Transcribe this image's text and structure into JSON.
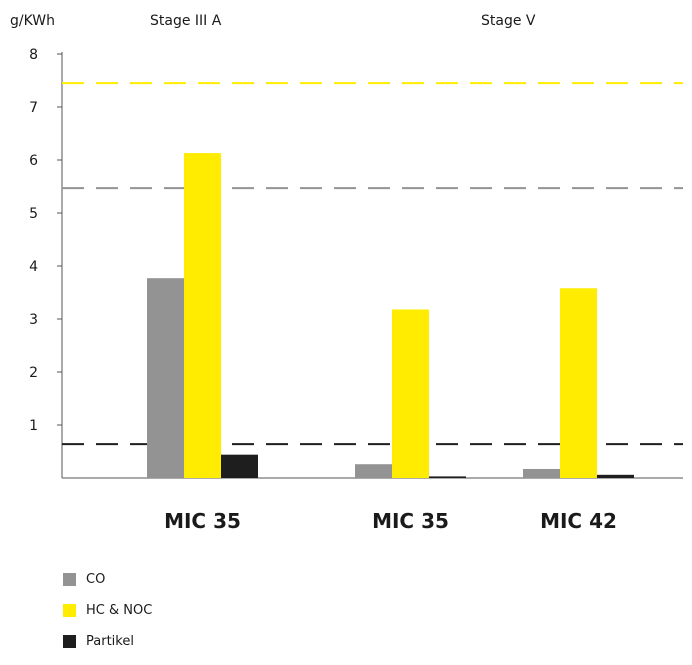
{
  "unit_label": "g/KWh",
  "stages": [
    "Stage III A",
    "Stage V"
  ],
  "chart_data": {
    "type": "bar",
    "categories": [
      "MIC 35",
      "MIC 35",
      "MIC 42"
    ],
    "series": [
      {
        "name": "CO",
        "color": "#939393",
        "values": [
          3.77,
          0.26,
          0.17
        ]
      },
      {
        "name": "HC & NOC",
        "color": "#ffec00",
        "values": [
          6.13,
          3.18,
          3.58
        ]
      },
      {
        "name": "Partikel",
        "color": "#1e1e1e",
        "values": [
          0.44,
          0.03,
          0.06
        ]
      }
    ],
    "limits": [
      {
        "value": 7.45,
        "color": "#ffec00"
      },
      {
        "value": 5.47,
        "color": "#939393"
      },
      {
        "value": 0.64,
        "color": "#1e1e1e"
      }
    ],
    "ylim": [
      0,
      8
    ],
    "yticks": [
      1,
      2,
      3,
      4,
      5,
      6,
      7,
      8
    ],
    "xlabel": "",
    "ylabel": ""
  }
}
